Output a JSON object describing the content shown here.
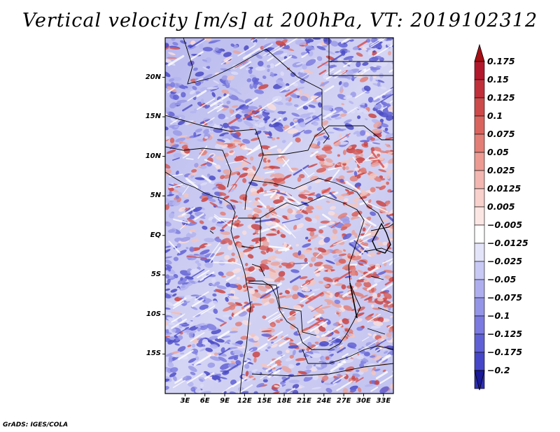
{
  "title": "Vertical velocity [m/s] at 200hPa, VT: 2019102312",
  "credit": "GrADS: IGES/COLA",
  "map": {
    "lon_range": [
      0,
      34.5
    ],
    "lat_range": [
      -20,
      25
    ],
    "lat_ticks": [
      {
        "value": 20,
        "label": "20N"
      },
      {
        "value": 15,
        "label": "15N"
      },
      {
        "value": 10,
        "label": "10N"
      },
      {
        "value": 5,
        "label": "5N"
      },
      {
        "value": 0,
        "label": "EQ"
      },
      {
        "value": -5,
        "label": "5S"
      },
      {
        "value": -10,
        "label": "10S"
      },
      {
        "value": -15,
        "label": "15S"
      }
    ],
    "lon_ticks": [
      {
        "value": 3,
        "label": "3E"
      },
      {
        "value": 6,
        "label": "6E"
      },
      {
        "value": 9,
        "label": "9E"
      },
      {
        "value": 12,
        "label": "12E"
      },
      {
        "value": 15,
        "label": "15E"
      },
      {
        "value": 18,
        "label": "18E"
      },
      {
        "value": 21,
        "label": "21E"
      },
      {
        "value": 24,
        "label": "24E"
      },
      {
        "value": 27,
        "label": "27E"
      },
      {
        "value": 30,
        "label": "30E"
      },
      {
        "value": 33,
        "label": "33E"
      }
    ]
  },
  "colorbar": {
    "levels": [
      {
        "label": "0.175",
        "color": "#b2182b"
      },
      {
        "label": "0.15",
        "color": "#c0303a"
      },
      {
        "label": "0.125",
        "color": "#cd4a4a"
      },
      {
        "label": "0.1",
        "color": "#d9645e"
      },
      {
        "label": "0.075",
        "color": "#e37e76"
      },
      {
        "label": "0.05",
        "color": "#ec9a92"
      },
      {
        "label": "0.025",
        "color": "#f3b6b0"
      },
      {
        "label": "0.0125",
        "color": "#f8d0cc"
      },
      {
        "label": "0.005",
        "color": "#fce6e4"
      },
      {
        "label": "−0.005",
        "color": "#ffffff"
      },
      {
        "label": "−0.0125",
        "color": "#e3e3fa"
      },
      {
        "label": "−0.025",
        "color": "#c9c9f5"
      },
      {
        "label": "−0.05",
        "color": "#aeaeef"
      },
      {
        "label": "−0.075",
        "color": "#9494e8"
      },
      {
        "label": "−0.1",
        "color": "#7a7ae0"
      },
      {
        "label": "−0.125",
        "color": "#6060d6"
      },
      {
        "label": "−0.175",
        "color": "#4646c9"
      },
      {
        "label": "−0.2",
        "color": "#2d2db5"
      }
    ],
    "top_arrow_color": "#a50f15",
    "bottom_arrow_color": "#1a1a9a"
  }
}
